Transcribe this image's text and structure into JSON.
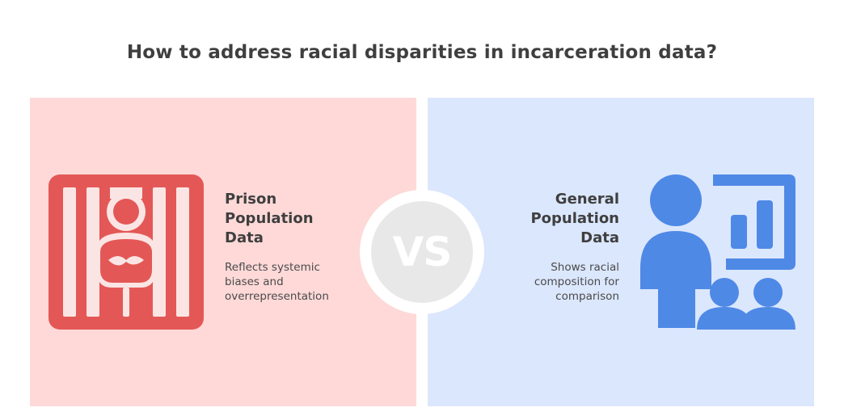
{
  "title": "How to address racial disparities in incarceration data?",
  "left": {
    "heading": "Prison\nPopulation\nData",
    "description": "Reflects systemic\nbiases and\noverrepresentation",
    "icon": "prison-bars-icon",
    "color": "#e35856",
    "background": "#fed9d8"
  },
  "right": {
    "heading": "General\nPopulation\nData",
    "description": "Shows racial\ncomposition for\ncomparison",
    "icon": "presenter-chart-audience-icon",
    "color": "#4f89e6",
    "background": "#dbe7fd"
  },
  "vs": {
    "label": "VS"
  }
}
